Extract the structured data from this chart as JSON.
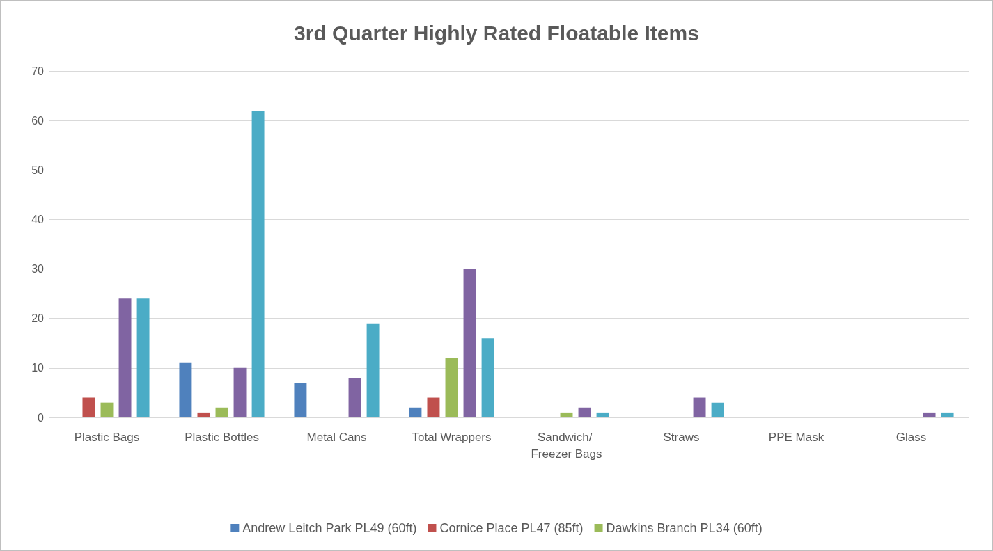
{
  "chart_data": {
    "type": "bar",
    "title": "3rd Quarter Highly Rated Floatable Items",
    "categories": [
      "Plastic Bags",
      "Plastic Bottles",
      "Metal Cans",
      "Total Wrappers",
      "Sandwich/ Freezer Bags",
      "Straws",
      "PPE Mask",
      "Glass"
    ],
    "series": [
      {
        "name": "Andrew Leitch Park PL49 (60ft)",
        "color": "#4f81bd",
        "values": [
          0,
          11,
          7,
          2,
          0,
          0,
          0,
          0
        ]
      },
      {
        "name": "Cornice Place PL47 (85ft)",
        "color": "#c0504d",
        "values": [
          4,
          1,
          0,
          4,
          0,
          0,
          0,
          0
        ]
      },
      {
        "name": "Dawkins Branch PL34 (60ft)",
        "color": "#9bbb59",
        "values": [
          3,
          2,
          0,
          12,
          1,
          0,
          0,
          0
        ]
      },
      {
        "color": "#8064a2",
        "values": [
          24,
          10,
          8,
          30,
          2,
          4,
          0,
          1
        ]
      },
      {
        "color": "#4bacc6",
        "values": [
          24,
          62,
          19,
          16,
          1,
          3,
          0,
          1
        ]
      }
    ],
    "ylim": [
      0,
      70
    ],
    "yticks": [
      0,
      10,
      20,
      30,
      40,
      50,
      60,
      70
    ],
    "grid": "y",
    "legend": "bottom"
  }
}
